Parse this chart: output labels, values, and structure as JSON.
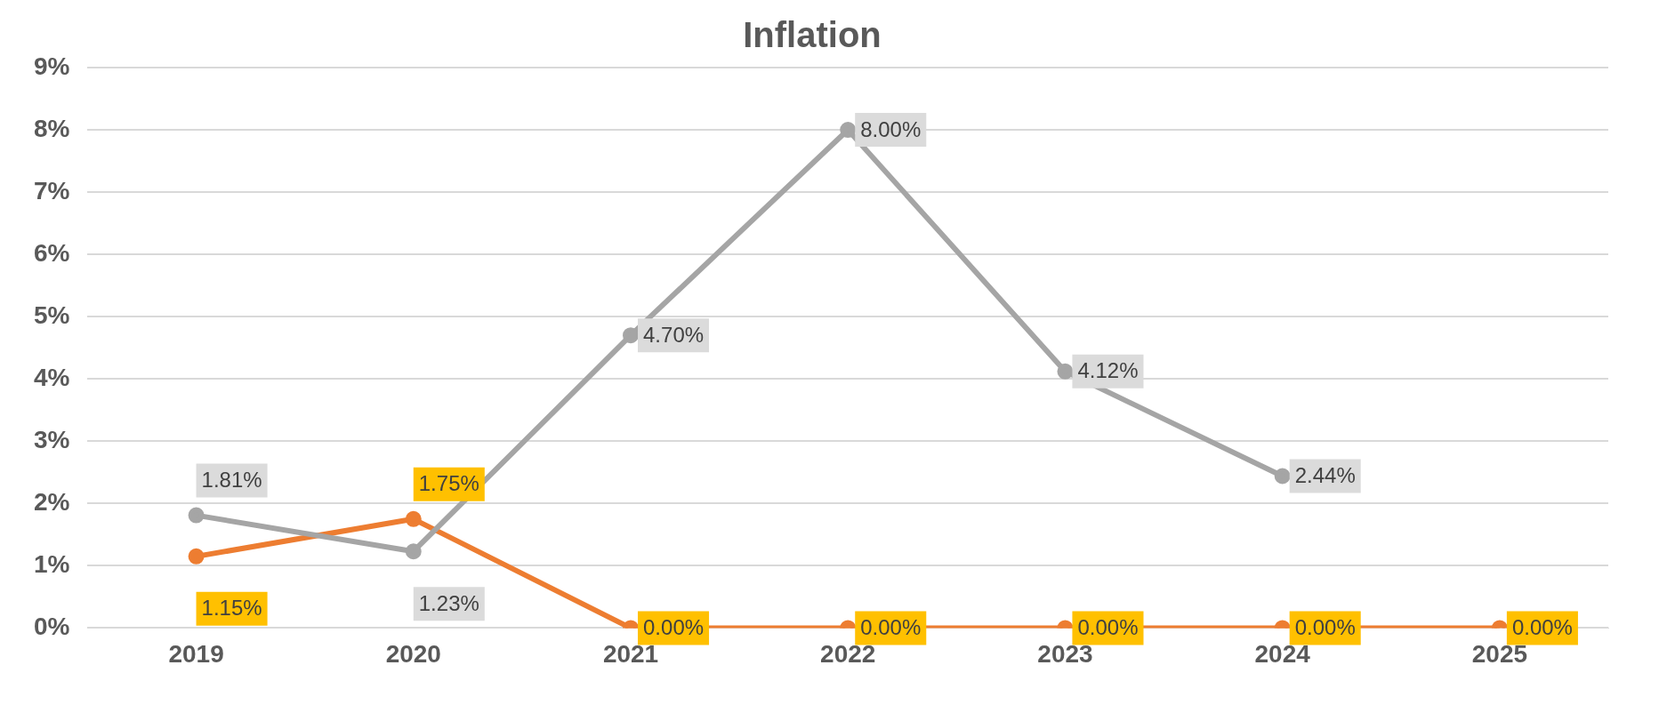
{
  "chart_data": {
    "type": "line",
    "title": "Inflation",
    "categories": [
      "2019",
      "2020",
      "2021",
      "2022",
      "2023",
      "2024",
      "2025"
    ],
    "series": [
      {
        "color": "#a5a5a5",
        "values": [
          1.81,
          1.23,
          4.7,
          8.0,
          4.12,
          2.44,
          null
        ],
        "value_labels": [
          "1.81%",
          "1.23%",
          "4.70%",
          "8.00%",
          "4.12%",
          "2.44%",
          null
        ]
      },
      {
        "color": "#ed7d31",
        "values": [
          1.15,
          1.75,
          0,
          0,
          0,
          0,
          0
        ],
        "value_labels": [
          "1.15%",
          "1.75%",
          "0.00%",
          "0.00%",
          "0.00%",
          "0.00%",
          "0.00%"
        ]
      }
    ],
    "ylim": [
      0,
      9
    ],
    "yticks": [
      {
        "value": 0,
        "label": "0%"
      },
      {
        "value": 1,
        "label": "1%"
      },
      {
        "value": 2,
        "label": "2%"
      },
      {
        "value": 3,
        "label": "3%"
      },
      {
        "value": 4,
        "label": "4%"
      },
      {
        "value": 5,
        "label": "5%"
      },
      {
        "value": 6,
        "label": "6%"
      },
      {
        "value": 7,
        "label": "7%"
      },
      {
        "value": 8,
        "label": "8%"
      },
      {
        "value": 9,
        "label": "9%"
      }
    ],
    "grid": "y",
    "legend": false,
    "marker": "circle",
    "line_style": "solid"
  }
}
